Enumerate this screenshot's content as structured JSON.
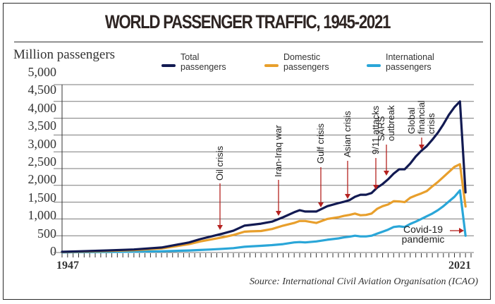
{
  "title": "WORLD PASSENGER TRAFFIC, 1945-2021",
  "unit_label": "Million passengers",
  "source": "Source: International Civil Aviation Organisation (ICAO)",
  "colors": {
    "total": "#121a52",
    "domestic": "#e89f2c",
    "international": "#2aa6d8",
    "arrow": "#b52220",
    "grid": "#7a7a7a"
  },
  "legend": [
    {
      "key": "total",
      "label": "Total\npassengers"
    },
    {
      "key": "domestic",
      "label": "Domestic\npassengers"
    },
    {
      "key": "international",
      "label": "International\npassengers"
    }
  ],
  "chart_data": {
    "type": "line",
    "title": "WORLD PASSENGER TRAFFIC, 1945-2021",
    "xlabel": "",
    "ylabel": "Million passengers",
    "xlim": [
      1947,
      2021
    ],
    "ylim": [
      0,
      5000
    ],
    "x_tick_labels": [
      "1947",
      "2021"
    ],
    "y_tick_labels": [
      "5,000",
      "4,500",
      "4,000",
      "3,500",
      "3,000",
      "2,500",
      "2,000",
      "1,500",
      "1,000",
      "500",
      "0"
    ],
    "grid": true,
    "legend_position": "top",
    "x": [
      1947,
      1950,
      1955,
      1960,
      1965,
      1970,
      1972,
      1974,
      1976,
      1978,
      1980,
      1981,
      1983,
      1985,
      1987,
      1989,
      1990,
      1991,
      1993,
      1995,
      1997,
      1998,
      1999,
      2000,
      2001,
      2002,
      2003,
      2004,
      2005,
      2006,
      2007,
      2008,
      2009,
      2010,
      2011,
      2012,
      2013,
      2014,
      2015,
      2016,
      2017,
      2018,
      2019,
      2020
    ],
    "series": [
      {
        "name": "Total passengers",
        "key": "total",
        "values": [
          20,
          35,
          60,
          90,
          150,
          300,
          400,
          480,
          560,
          650,
          800,
          820,
          860,
          920,
          1050,
          1200,
          1260,
          1220,
          1220,
          1380,
          1470,
          1510,
          1560,
          1660,
          1720,
          1720,
          1770,
          1930,
          2040,
          2180,
          2350,
          2480,
          2480,
          2650,
          2860,
          3030,
          3170,
          3360,
          3570,
          3820,
          4100,
          4330,
          4500,
          1790
        ]
      },
      {
        "name": "Domestic passengers",
        "key": "domestic",
        "values": [
          15,
          25,
          45,
          70,
          120,
          250,
          330,
          390,
          450,
          520,
          620,
          630,
          640,
          700,
          800,
          880,
          940,
          940,
          880,
          1000,
          1050,
          1090,
          1120,
          1160,
          1110,
          1120,
          1160,
          1300,
          1380,
          1430,
          1530,
          1520,
          1500,
          1630,
          1700,
          1760,
          1830,
          1970,
          2100,
          2250,
          2400,
          2550,
          2630,
          1370
        ]
      },
      {
        "name": "International passengers",
        "key": "international",
        "values": [
          5,
          10,
          15,
          25,
          35,
          60,
          75,
          90,
          110,
          130,
          170,
          180,
          200,
          220,
          250,
          300,
          310,
          300,
          330,
          380,
          420,
          450,
          470,
          500,
          480,
          480,
          500,
          560,
          620,
          680,
          760,
          780,
          760,
          850,
          920,
          1000,
          1080,
          1160,
          1260,
          1380,
          1520,
          1660,
          1850,
          500
        ]
      }
    ],
    "annotations": [
      {
        "label": "Oil crisis",
        "year": 1973
      },
      {
        "label": "Iran-Iraq war",
        "year": 1980
      },
      {
        "label": "Gulf crisis",
        "year": 1991
      },
      {
        "label": "Asian crisis",
        "year": 1997
      },
      {
        "label": "9/11 attacks",
        "year": 2001
      },
      {
        "label": "SARS outbreak",
        "year": 2003
      },
      {
        "label": "Global financial crisis",
        "year": 2008
      },
      {
        "label": "Covid-19 pandemic",
        "year": 2020
      }
    ]
  }
}
